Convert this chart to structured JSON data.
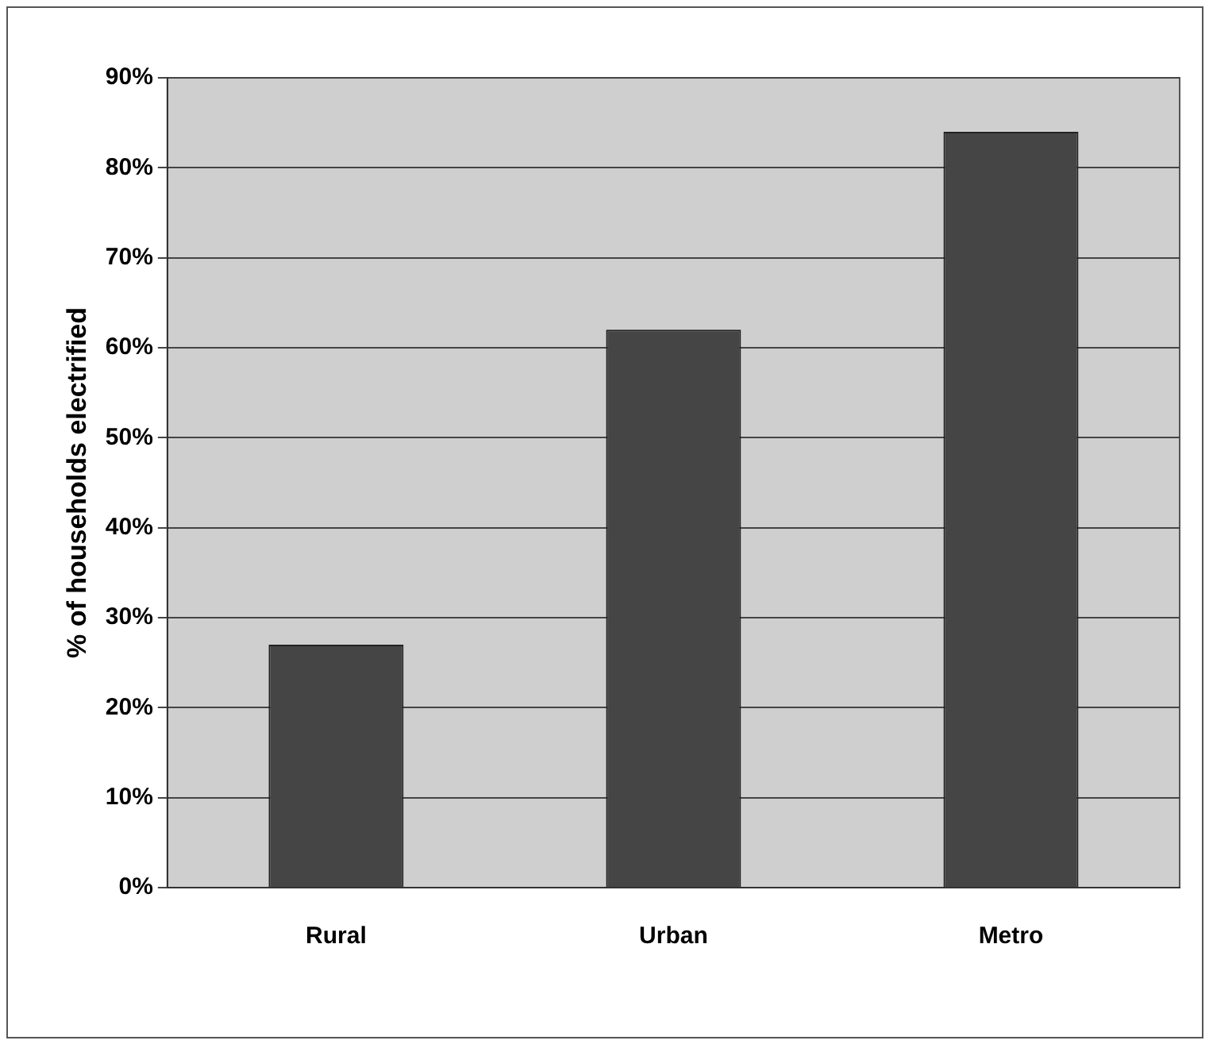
{
  "chart_data": {
    "type": "bar",
    "ylabel": "% of households electrified",
    "categories": [
      "Rural",
      "Urban",
      "Metro"
    ],
    "values": [
      27,
      62,
      84
    ],
    "color": "#454545",
    "ylim": [
      0,
      90
    ],
    "yticks": [
      {
        "value": 0,
        "label": "0%"
      },
      {
        "value": 10,
        "label": "10%"
      },
      {
        "value": 20,
        "label": "20%"
      },
      {
        "value": 30,
        "label": "30%"
      },
      {
        "value": 40,
        "label": "40%"
      },
      {
        "value": 50,
        "label": "50%"
      },
      {
        "value": 60,
        "label": "60%"
      },
      {
        "value": 70,
        "label": "70%"
      },
      {
        "value": 80,
        "label": "80%"
      },
      {
        "value": 90,
        "label": "90%"
      }
    ],
    "grid": "y",
    "legend": false
  }
}
